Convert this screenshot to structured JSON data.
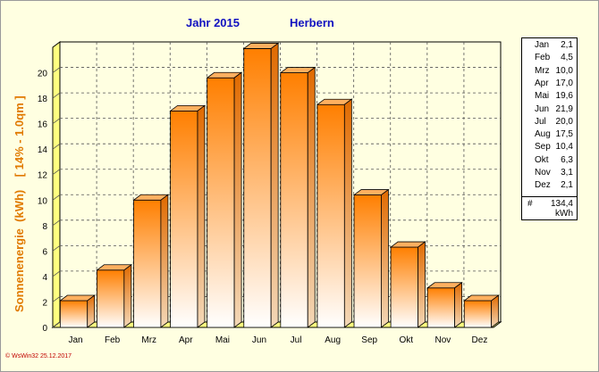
{
  "title_left": "Jahr  2015",
  "title_right": "Herbern",
  "ylabel": "Sonnenenergie  (kWh)    [ 14% - 1.0qm ]",
  "legend": {
    "months": [
      {
        "m": "Jan",
        "v": "2,1"
      },
      {
        "m": "Feb",
        "v": "4,5"
      },
      {
        "m": "Mrz",
        "v": "10,0"
      },
      {
        "m": "Apr",
        "v": "17,0"
      },
      {
        "m": "Mai",
        "v": "19,6"
      },
      {
        "m": "Jun",
        "v": "21,9"
      },
      {
        "m": "Jul",
        "v": "20,0"
      },
      {
        "m": "Aug",
        "v": "17,5"
      },
      {
        "m": "Sep",
        "v": "10,4"
      },
      {
        "m": "Okt",
        "v": "6,3"
      },
      {
        "m": "Nov",
        "v": "3,1"
      },
      {
        "m": "Dez",
        "v": "2,1"
      }
    ],
    "total_symbol": "#",
    "total_value": "134,4",
    "total_unit": "kWh"
  },
  "copyright": "© WsWin32  25.12.2017",
  "colors": {
    "bar_top": "#ff7f00",
    "bar_bottom": "#ffffff",
    "title": "#1010c0",
    "ylabel": "#e07a00",
    "background": "#ffffe1"
  },
  "chart_data": {
    "type": "bar",
    "categories": [
      "Jan",
      "Feb",
      "Mrz",
      "Apr",
      "Mai",
      "Jun",
      "Jul",
      "Aug",
      "Sep",
      "Okt",
      "Nov",
      "Dez"
    ],
    "values": [
      2.1,
      4.5,
      10.0,
      17.0,
      19.6,
      21.9,
      20.0,
      17.5,
      10.4,
      6.3,
      3.1,
      2.1
    ],
    "ylim": [
      0,
      22
    ],
    "yticks": [
      0,
      2,
      4,
      6,
      8,
      10,
      12,
      14,
      16,
      18,
      20
    ],
    "grid": true,
    "title": "Jahr  2015   Herbern",
    "ylabel": "Sonnenenergie  (kWh)    [ 14% - 1.0qm ]",
    "xlabel": ""
  }
}
